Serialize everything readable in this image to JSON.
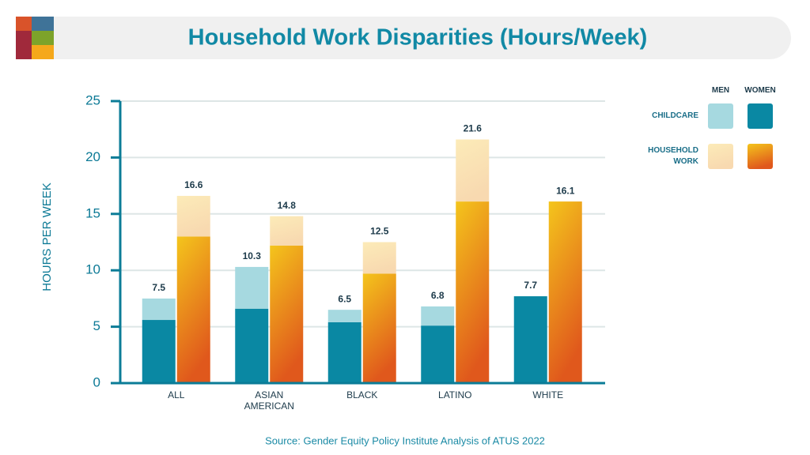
{
  "chart_data": {
    "type": "bar",
    "title": "Household Work Disparities (Hours/Week)",
    "source": "Source: Gender Equity Policy Institute Analysis of ATUS 2022",
    "ylabel": "HOURS PER WEEK",
    "categories": [
      "ALL",
      "ASIAN AMERICAN",
      "BLACK",
      "LATINO",
      "WHITE"
    ],
    "ylim": [
      0,
      25
    ],
    "yticks": [
      0,
      5,
      10,
      15,
      20,
      25
    ],
    "grid": true,
    "legend_position": "right",
    "legend_columns": [
      "MEN",
      "WOMEN"
    ],
    "stacks": [
      {
        "name": "CHILDCARE",
        "segments": [
          {
            "color": "#a6d9e0",
            "values": [
              1.9,
              3.7,
              1.1,
              1.7,
              0
            ]
          },
          {
            "color": "#0a88a3",
            "values": [
              5.6,
              6.6,
              5.4,
              5.1,
              7.7
            ]
          }
        ],
        "totals": [
          7.5,
          10.3,
          6.5,
          6.8,
          7.7
        ]
      },
      {
        "name": "HOUSEHOLD WORK",
        "segments": [
          {
            "color": [
              "#fcebb8",
              "#f8d9b0"
            ],
            "values": [
              3.6,
              2.6,
              2.8,
              5.5,
              0
            ]
          },
          {
            "color": [
              "#f4c51c",
              "#e0581c"
            ],
            "values": [
              13.0,
              12.2,
              9.7,
              16.1,
              16.1
            ]
          }
        ],
        "totals": [
          16.6,
          14.8,
          12.5,
          21.6,
          16.1
        ]
      }
    ]
  }
}
